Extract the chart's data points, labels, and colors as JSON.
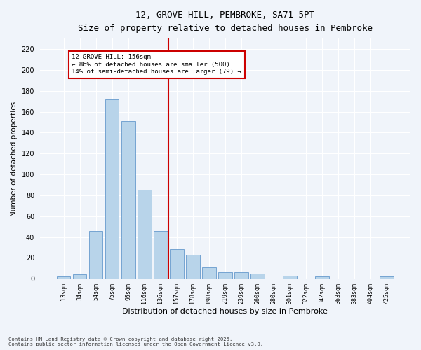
{
  "title": "12, GROVE HILL, PEMBROKE, SA71 5PT",
  "subtitle": "Size of property relative to detached houses in Pembroke",
  "xlabel": "Distribution of detached houses by size in Pembroke",
  "ylabel": "Number of detached properties",
  "categories": [
    "13sqm",
    "34sqm",
    "54sqm",
    "75sqm",
    "95sqm",
    "116sqm",
    "136sqm",
    "157sqm",
    "178sqm",
    "198sqm",
    "219sqm",
    "239sqm",
    "260sqm",
    "280sqm",
    "301sqm",
    "322sqm",
    "342sqm",
    "363sqm",
    "383sqm",
    "404sqm",
    "425sqm"
  ],
  "values": [
    2,
    4,
    46,
    172,
    151,
    85,
    46,
    28,
    23,
    11,
    6,
    6,
    5,
    0,
    3,
    0,
    2,
    0,
    0,
    0,
    2
  ],
  "bar_color": "#b8d4ea",
  "bar_edge_color": "#6699cc",
  "vline_x_index": 7,
  "vline_color": "#cc0000",
  "annotation_line1": "12 GROVE HILL: 156sqm",
  "annotation_line2": "← 86% of detached houses are smaller (500)",
  "annotation_line3": "14% of semi-detached houses are larger (79) →",
  "annotation_box_color": "#cc0000",
  "ylim": [
    0,
    230
  ],
  "yticks": [
    0,
    20,
    40,
    60,
    80,
    100,
    120,
    140,
    160,
    180,
    200,
    220
  ],
  "bg_color": "#f0f4fa",
  "plot_bg_color": "#f0f4fa",
  "grid_color": "#ffffff",
  "footer_line1": "Contains HM Land Registry data © Crown copyright and database right 2025.",
  "footer_line2": "Contains public sector information licensed under the Open Government Licence v3.0."
}
